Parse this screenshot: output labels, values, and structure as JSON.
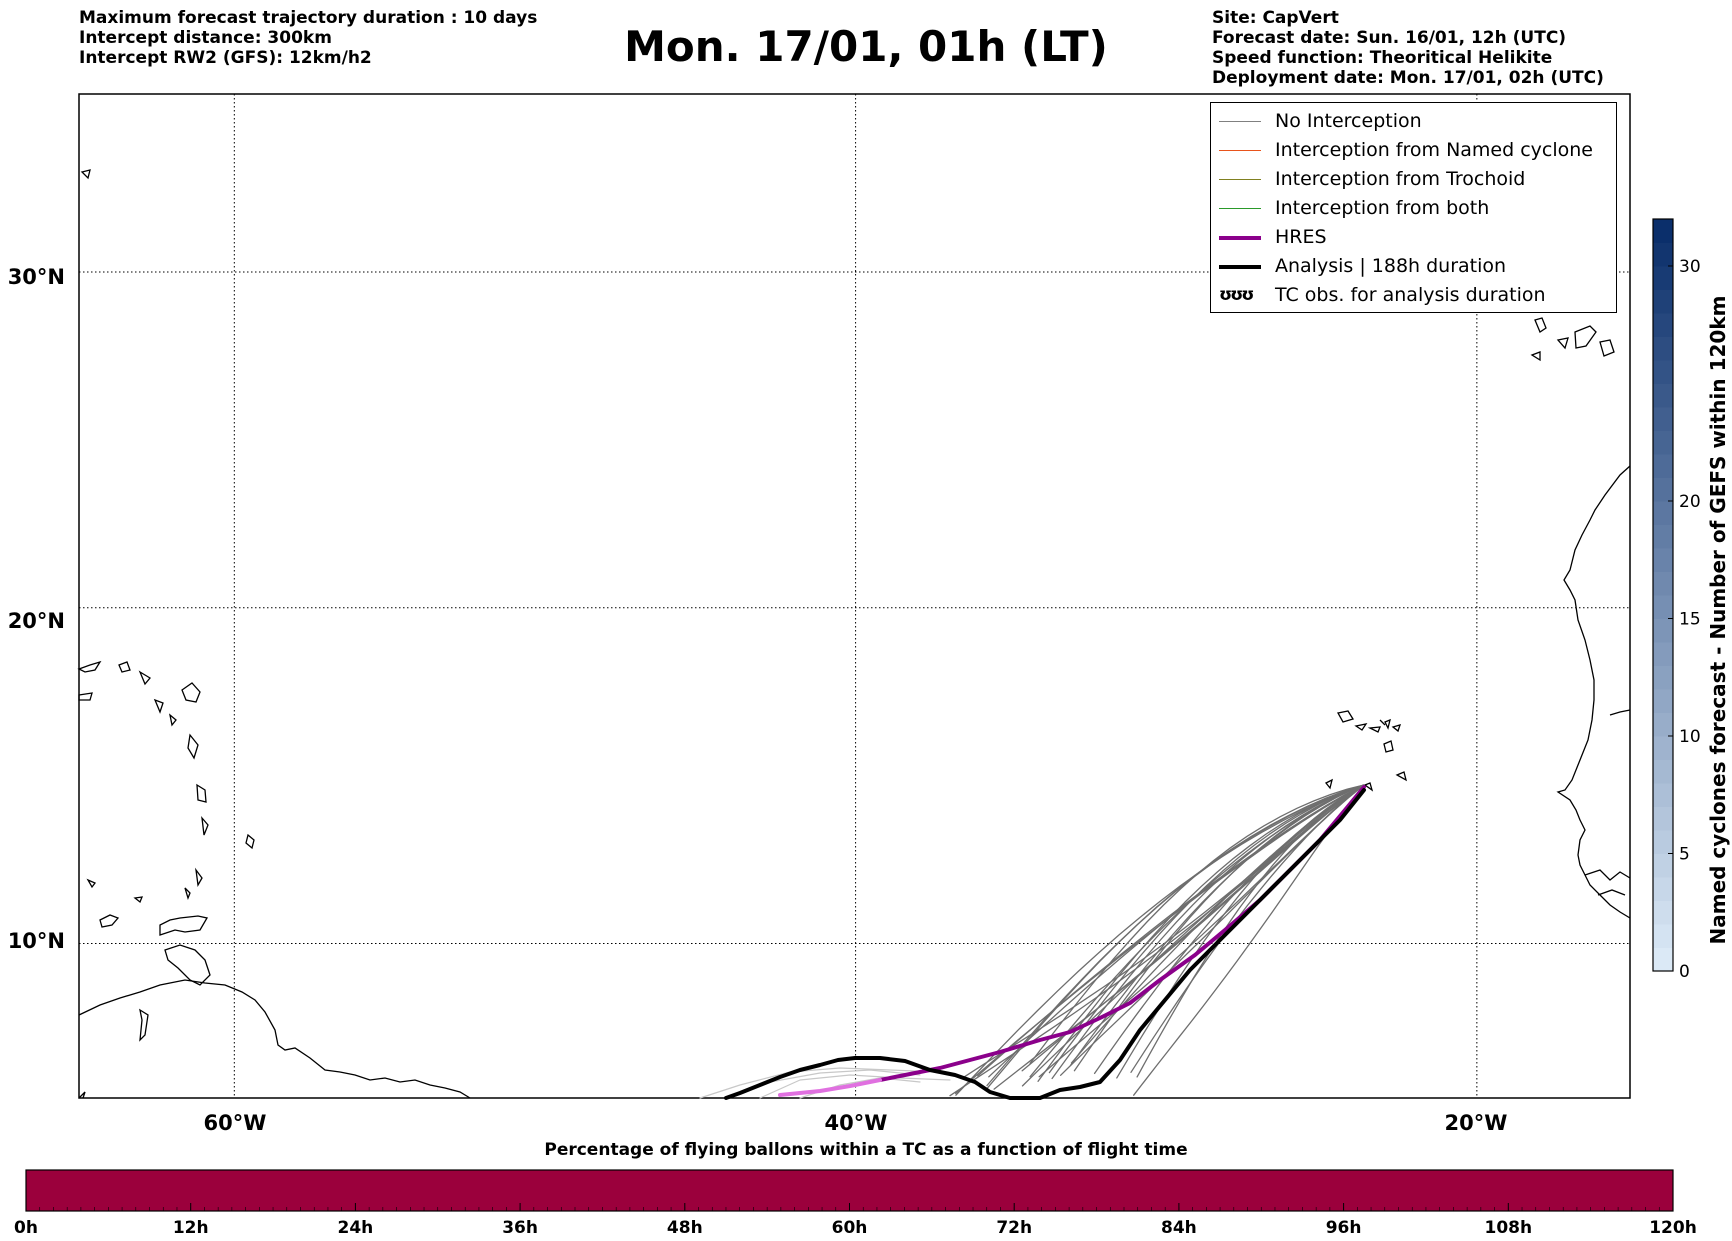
{
  "header_left": [
    "Maximum forecast trajectory duration : 10 days",
    "Intercept distance: 300km",
    "Intercept RW2 (GFS):  12km/h2"
  ],
  "header_right": [
    "Site: CapVert",
    "Forecast date: Sun. 16/01, 12h (UTC)",
    "Speed function: Theoritical Helikite",
    "Deployment date: Mon. 17/01, 02h (UTC)"
  ],
  "title": "Mon. 17/01, 01h (LT)",
  "map": {
    "lat_labels": [
      "30°N",
      "20°N",
      "10°N"
    ],
    "lon_labels": [
      "60°W",
      "40°W",
      "20°W"
    ]
  },
  "legend": [
    {
      "label": "No Interception",
      "color": "#808080",
      "style": "thin"
    },
    {
      "label": "Interception from Named cyclone",
      "color": "#e8541c",
      "style": "thin"
    },
    {
      "label": "Interception from Trochoid",
      "color": "#808020",
      "style": "thin"
    },
    {
      "label": "Interception from both",
      "color": "#2a9a2a",
      "style": "thin"
    },
    {
      "label": "HRES",
      "color": "#8b008b",
      "style": "thick"
    },
    {
      "label": "Analysis | 188h duration",
      "color": "#000000",
      "style": "thick"
    },
    {
      "label": "TC obs. for analysis duration",
      "color": "#000000",
      "style": "symbol",
      "symbol": "ʊʊʊ"
    }
  ],
  "colorbar_right": {
    "label": "Named cyclones forecast - Number of GEFS within 120km",
    "ticks": [
      "0",
      "5",
      "10",
      "15",
      "20",
      "30"
    ],
    "tick_values": [
      0,
      5,
      10,
      15,
      20,
      30
    ],
    "range": [
      0,
      32
    ],
    "color_light": "#dbe9f6",
    "color_dark": "#0b2f6b"
  },
  "colorbar_bottom": {
    "title": "Percentage of flying ballons within a TC as a function of flight time",
    "ticks": [
      "0h",
      "12h",
      "24h",
      "36h",
      "48h",
      "60h",
      "72h",
      "84h",
      "96h",
      "108h",
      "120h"
    ],
    "color": "#9b003c"
  },
  "colors": {
    "ensemble": "#6e6e6e",
    "ensemble_faded": "#c8c8c8",
    "hres": "#8b008b",
    "hres_faded": "#e070e0",
    "analysis": "#000000"
  }
}
